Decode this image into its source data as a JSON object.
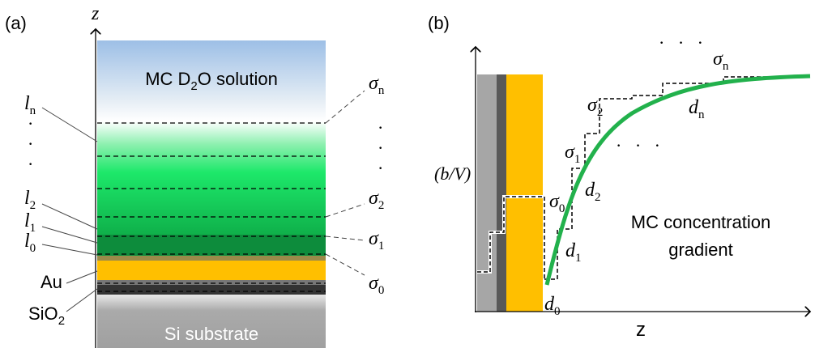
{
  "panel_a": {
    "label": "(a)",
    "axis": "z",
    "solution": [
      "MC D",
      "2",
      "O solution"
    ],
    "substrate": "Si substrate",
    "gold": "Au",
    "oxide": [
      "SiO",
      "2"
    ],
    "left_labels": [
      {
        "base": "l",
        "sub": "n"
      },
      {
        "base": "l",
        "sub": "2"
      },
      {
        "base": "l",
        "sub": "1"
      },
      {
        "base": "l",
        "sub": "0"
      }
    ],
    "right_labels": [
      {
        "base": "σ",
        "sub": "n"
      },
      {
        "base": "σ",
        "sub": "2"
      },
      {
        "base": "σ",
        "sub": "1"
      },
      {
        "base": "σ",
        "sub": "0"
      }
    ]
  },
  "panel_b": {
    "label": "(b)",
    "x_axis": "z",
    "y_axis": "(b/V)",
    "annotation": [
      "MC concentration",
      "gradient"
    ],
    "thicknesses": [
      {
        "base": "d",
        "sub": "0"
      },
      {
        "base": "d",
        "sub": "1"
      },
      {
        "base": "d",
        "sub": "2"
      },
      {
        "base": "d",
        "sub": "n"
      }
    ],
    "densities": [
      {
        "base": "σ",
        "sub": "0"
      },
      {
        "base": "σ",
        "sub": "1"
      },
      {
        "base": "σ",
        "sub": "2"
      },
      {
        "base": "σ",
        "sub": "n"
      }
    ]
  }
}
